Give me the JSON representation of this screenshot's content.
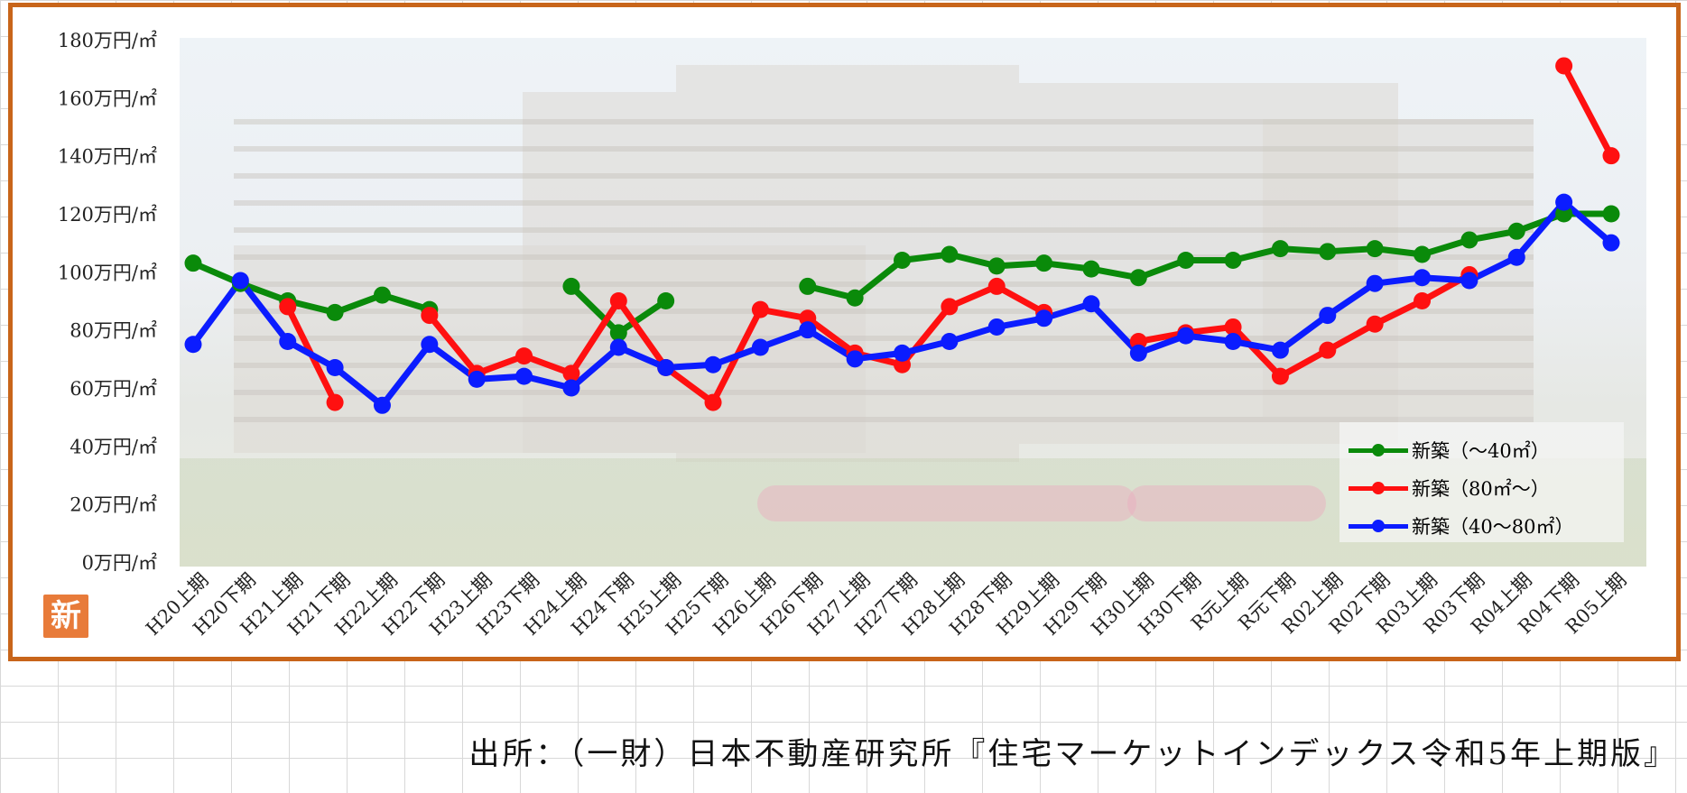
{
  "chart_data": {
    "type": "line",
    "categories": [
      "H20上期",
      "H20下期",
      "H21上期",
      "H21下期",
      "H22上期",
      "H22下期",
      "H23上期",
      "H23下期",
      "H24上期",
      "H24下期",
      "H25上期",
      "H25下期",
      "H26上期",
      "H26下期",
      "H27上期",
      "H27下期",
      "H28上期",
      "H28下期",
      "H29上期",
      "H29下期",
      "H30上期",
      "H30下期",
      "R元上期",
      "R元下期",
      "R02上期",
      "R02下期",
      "R03上期",
      "R03下期",
      "R04上期",
      "R04下期",
      "R05上期"
    ],
    "yticks": [
      "0万円/㎡",
      "20万円/㎡",
      "40万円/㎡",
      "60万円/㎡",
      "80万円/㎡",
      "100万円/㎡",
      "120万円/㎡",
      "140万円/㎡",
      "160万円/㎡",
      "180万円/㎡"
    ],
    "ylim": [
      0,
      180
    ],
    "legend_position": "bottom-right",
    "series": [
      {
        "name": "新築（～40㎡）",
        "color": "#0a8a0a",
        "values": [
          103,
          96,
          90,
          86,
          92,
          87,
          null,
          null,
          95,
          79,
          90,
          null,
          null,
          95,
          91,
          104,
          106,
          102,
          103,
          101,
          98,
          104,
          104,
          108,
          107,
          108,
          106,
          111,
          114,
          120,
          120
        ]
      },
      {
        "name": "新築（80㎡～）",
        "color": "#ff1010",
        "values": [
          null,
          null,
          88,
          55,
          null,
          85,
          65,
          71,
          65,
          90,
          67,
          55,
          87,
          84,
          72,
          68,
          88,
          95,
          86,
          null,
          76,
          79,
          81,
          64,
          73,
          82,
          90,
          99,
          null,
          171,
          140
        ]
      },
      {
        "name": "新築（40～80㎡）",
        "color": "#0b1cff",
        "values": [
          75,
          97,
          76,
          67,
          54,
          75,
          63,
          64,
          60,
          74,
          67,
          68,
          74,
          80,
          70,
          72,
          76,
          81,
          84,
          89,
          72,
          78,
          76,
          73,
          85,
          96,
          98,
          97,
          105,
          124,
          110
        ]
      }
    ]
  },
  "badge": {
    "text": "新"
  },
  "source": {
    "text": "出所：（一財）日本不動産研究所『住宅マーケットインデックス令和5年上期版』"
  }
}
